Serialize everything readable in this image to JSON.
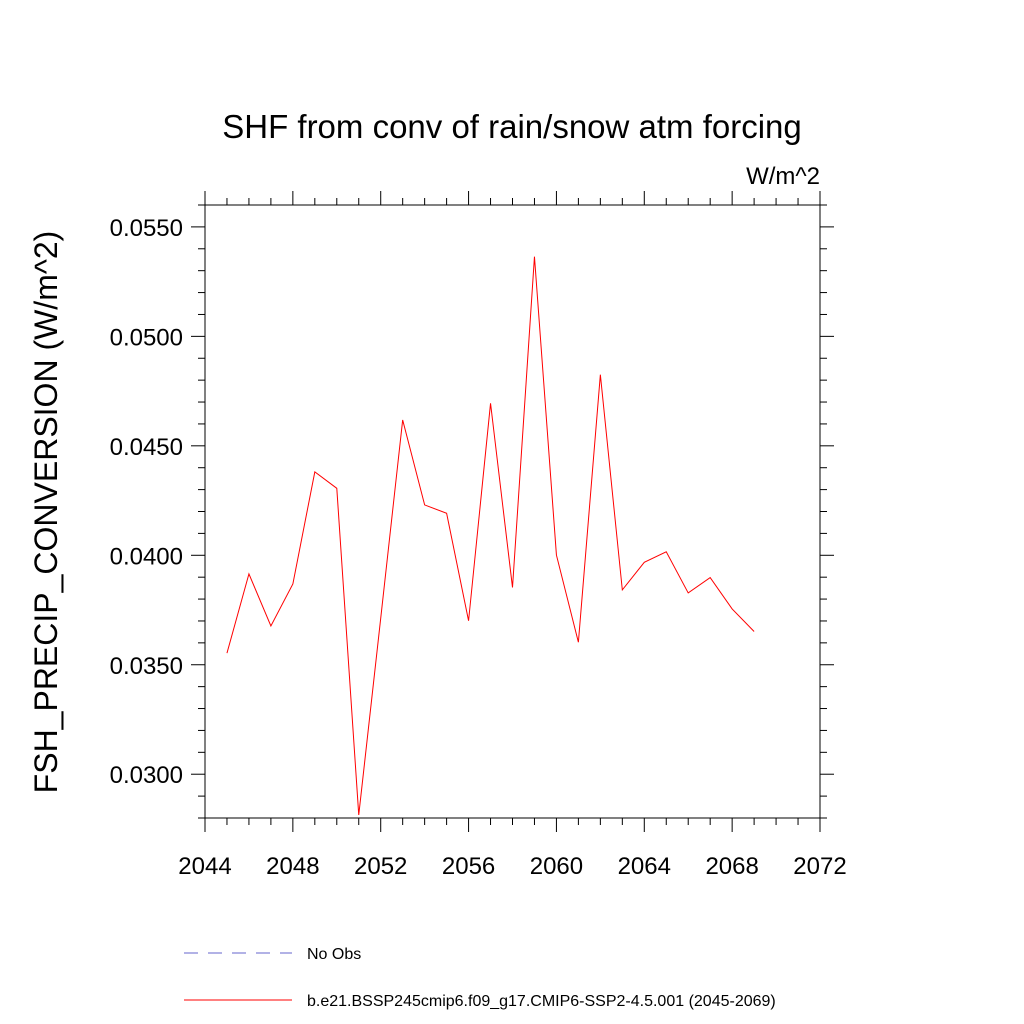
{
  "chart_data": {
    "type": "line",
    "title": "SHF from conv of rain/snow atm forcing",
    "units_label": "W/m^2",
    "ylabel": "FSH_PRECIP_CONVERSION  (W/m^2)",
    "xlabel": "",
    "xlim": [
      2044,
      2072
    ],
    "ylim": [
      0.028,
      0.056
    ],
    "x_ticks": [
      2044,
      2048,
      2052,
      2056,
      2060,
      2064,
      2068,
      2072
    ],
    "x_tick_labels": [
      "2044",
      "2048",
      "2052",
      "2056",
      "2060",
      "2064",
      "2068",
      "2072"
    ],
    "y_ticks": [
      0.03,
      0.035,
      0.04,
      0.045,
      0.05,
      0.055
    ],
    "y_tick_labels": [
      "0.0300",
      "0.0350",
      "0.0400",
      "0.0450",
      "0.0500",
      "0.0550"
    ],
    "grid": false,
    "legend_position": "bottom",
    "series": [
      {
        "name": "b.e21.BSSP245cmip6.f09_g17.CMIP6-SSP2-4.5.001 (2045-2069)",
        "color": "#ff0000",
        "dash": "solid",
        "x": [
          2045,
          2046,
          2047,
          2048,
          2049,
          2050,
          2051,
          2052,
          2053,
          2054,
          2055,
          2056,
          2057,
          2058,
          2059,
          2060,
          2061,
          2062,
          2063,
          2064,
          2065,
          2066,
          2067,
          2068,
          2069
        ],
        "y": [
          0.03553,
          0.03915,
          0.03677,
          0.03869,
          0.04381,
          0.04306,
          0.02814,
          0.03712,
          0.04618,
          0.0423,
          0.04192,
          0.03701,
          0.04694,
          0.03853,
          0.05364,
          0.04001,
          0.03603,
          0.04825,
          0.03842,
          0.03968,
          0.04016,
          0.03828,
          0.03898,
          0.03755,
          0.03652
        ]
      }
    ],
    "legend": [
      {
        "label": "No Obs",
        "color": "#6666cc",
        "dash": "dashed"
      },
      {
        "label": "b.e21.BSSP245cmip6.f09_g17.CMIP6-SSP2-4.5.001 (2045-2069)",
        "color": "#ff0000",
        "dash": "solid"
      }
    ]
  }
}
